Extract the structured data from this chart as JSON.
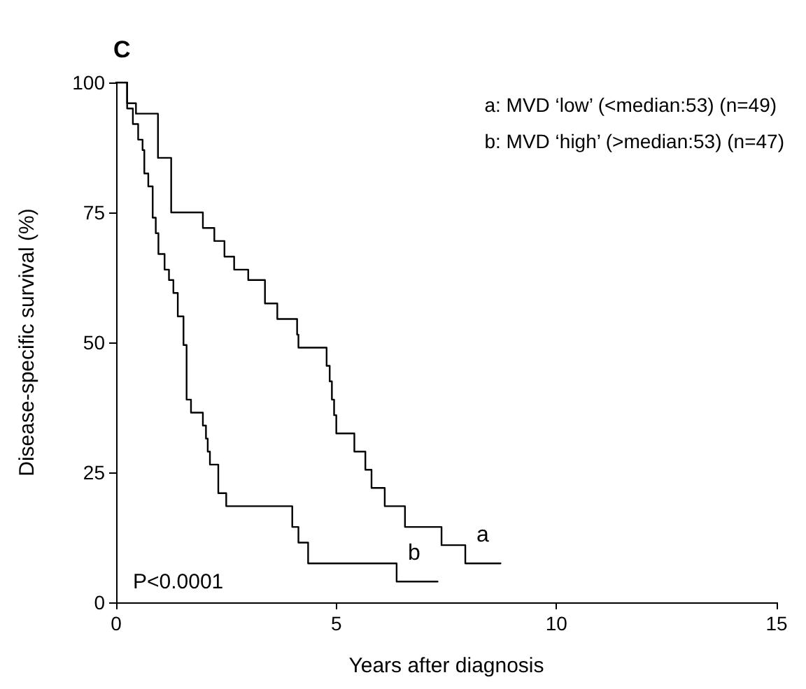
{
  "chart_data": {
    "type": "step",
    "title": "C",
    "xlabel": "Years after diagnosis",
    "ylabel": "Disease-specific survival (%)",
    "xlim": [
      0,
      15
    ],
    "xticks": [
      0,
      5,
      10,
      15
    ],
    "ylim": [
      0,
      100
    ],
    "yticks": [
      0,
      25,
      50,
      75,
      100
    ],
    "grid": false,
    "legend": "top right",
    "marker": "none",
    "line_style": "solid",
    "series": [
      {
        "name": "a: MVD ‘low’ (<median:53) (n=49)",
        "color": "#000000",
        "x": [
          0,
          0.25,
          0.45,
          0.95,
          1.25,
          1.97,
          2.23,
          2.46,
          2.68,
          3.0,
          3.38,
          3.66,
          4.11,
          4.14,
          4.78,
          4.85,
          4.9,
          4.95,
          5.0,
          5.41,
          5.66,
          5.8,
          6.1,
          6.56,
          7.39,
          7.93,
          8.73
        ],
        "values": [
          100,
          96,
          94,
          85.5,
          75,
          72,
          69.5,
          66.5,
          64,
          62,
          57.5,
          54.5,
          51.5,
          49,
          45.5,
          42.5,
          39,
          36,
          32.5,
          29,
          25.5,
          22,
          18.5,
          14.5,
          11,
          7.5,
          7.5
        ]
      },
      {
        "name": "b: MVD ‘high’ (>median:53) (n=47)",
        "color": "#000000",
        "x": [
          0,
          0.25,
          0.38,
          0.5,
          0.6,
          0.64,
          0.73,
          0.83,
          0.9,
          0.96,
          1.1,
          1.2,
          1.3,
          1.4,
          1.53,
          1.6,
          1.7,
          1.97,
          2.04,
          2.08,
          2.13,
          2.32,
          2.5,
          4.0,
          4.14,
          4.36,
          6.37,
          7.3
        ],
        "values": [
          100,
          95,
          92,
          89,
          87,
          82.5,
          80,
          74,
          71,
          67,
          64,
          62,
          59.5,
          55,
          49.5,
          39,
          36.5,
          34,
          31.5,
          29,
          26.5,
          21,
          18.5,
          14.5,
          11.5,
          7.5,
          4,
          4
        ]
      }
    ],
    "annotations": [
      "a",
      "b",
      "P<0.0001"
    ]
  }
}
